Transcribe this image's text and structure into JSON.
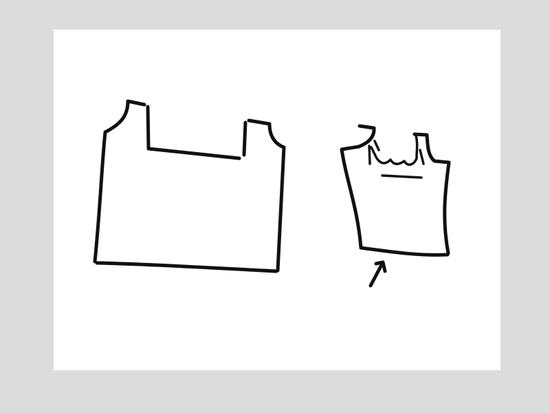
{
  "colors": {
    "background": "#dcdcdc",
    "paper": "#ffffff",
    "ink": "#111111"
  },
  "drawings": [
    {
      "name": "unfinished-tank-top",
      "description_icon": "garment-outline-icon"
    },
    {
      "name": "finished-tank-top",
      "description_icon": "garment-with-ruffle-icon"
    },
    {
      "name": "arrow",
      "description_icon": "arrow-up-right-icon"
    }
  ]
}
